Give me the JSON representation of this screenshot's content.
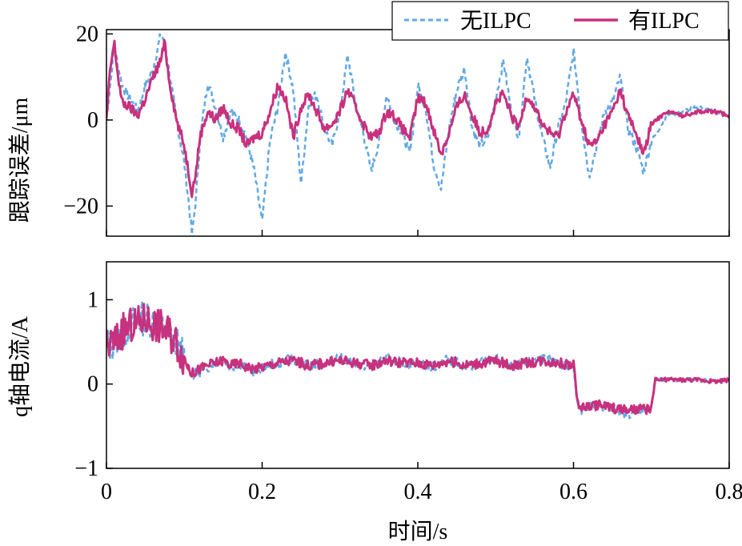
{
  "figure": {
    "xlabel": "时间/s"
  },
  "legend": {
    "entries": [
      {
        "label": "无ILPC",
        "color": "#62A8E5",
        "dash": "dashed"
      },
      {
        "label": "有ILPC",
        "color": "#C8317D",
        "dash": "solid"
      }
    ],
    "placement": "top-right"
  },
  "chart_data": [
    {
      "type": "line",
      "panel": "top",
      "ylabel": "跟踪误差/μm",
      "xlim": [
        0,
        0.8
      ],
      "ylim": [
        -27,
        21
      ],
      "yticks": [
        20,
        0,
        -20
      ],
      "ytick_labels": [
        "20",
        "0",
        "−20"
      ],
      "xticks": [
        0,
        0.2,
        0.4,
        0.6,
        0.8
      ],
      "xtick_labels_shown": false,
      "grid": false,
      "series": [
        {
          "name": "无ILPC",
          "color": "#62A8E5",
          "style": "dashed",
          "x": [
            0,
            0.01,
            0.02,
            0.03,
            0.04,
            0.05,
            0.06,
            0.07,
            0.075,
            0.08,
            0.09,
            0.1,
            0.105,
            0.11,
            0.115,
            0.12,
            0.13,
            0.14,
            0.15,
            0.16,
            0.17,
            0.18,
            0.19,
            0.2,
            0.21,
            0.22,
            0.23,
            0.24,
            0.25,
            0.26,
            0.27,
            0.28,
            0.29,
            0.3,
            0.31,
            0.32,
            0.33,
            0.34,
            0.35,
            0.36,
            0.37,
            0.38,
            0.39,
            0.4,
            0.41,
            0.42,
            0.43,
            0.44,
            0.45,
            0.46,
            0.47,
            0.48,
            0.49,
            0.5,
            0.51,
            0.52,
            0.53,
            0.54,
            0.55,
            0.56,
            0.57,
            0.58,
            0.59,
            0.6,
            0.61,
            0.62,
            0.63,
            0.64,
            0.65,
            0.66,
            0.67,
            0.68,
            0.69,
            0.7,
            0.72,
            0.74,
            0.76,
            0.78,
            0.8
          ],
          "y": [
            0,
            17,
            8,
            5,
            2,
            8,
            12,
            20,
            18,
            12,
            0,
            -10,
            -18,
            -27,
            -18,
            -5,
            9,
            3,
            -4,
            2,
            0,
            -4,
            -12,
            -24,
            -5,
            3,
            16,
            7,
            -15,
            4,
            6,
            -2,
            -6,
            2,
            15,
            4,
            -3,
            -12,
            -5,
            6,
            0,
            -3,
            -8,
            8,
            3,
            -10,
            -16,
            -2,
            7,
            12,
            -2,
            -6,
            -4,
            5,
            14,
            2,
            -4,
            15,
            5,
            -4,
            -11,
            -2,
            4,
            16,
            0,
            -13,
            -6,
            2,
            4,
            10,
            -2,
            -6,
            -12,
            -5,
            1,
            2,
            3,
            2,
            1
          ]
        },
        {
          "name": "有ILPC",
          "color": "#C8317D",
          "style": "solid",
          "x": [
            0,
            0.005,
            0.01,
            0.015,
            0.02,
            0.03,
            0.04,
            0.05,
            0.06,
            0.07,
            0.075,
            0.08,
            0.09,
            0.1,
            0.11,
            0.115,
            0.12,
            0.13,
            0.14,
            0.15,
            0.16,
            0.17,
            0.18,
            0.19,
            0.2,
            0.21,
            0.22,
            0.23,
            0.24,
            0.25,
            0.26,
            0.27,
            0.28,
            0.29,
            0.3,
            0.31,
            0.32,
            0.33,
            0.34,
            0.35,
            0.36,
            0.37,
            0.38,
            0.39,
            0.4,
            0.41,
            0.42,
            0.43,
            0.44,
            0.45,
            0.46,
            0.47,
            0.48,
            0.49,
            0.5,
            0.51,
            0.52,
            0.53,
            0.54,
            0.55,
            0.56,
            0.57,
            0.58,
            0.59,
            0.6,
            0.61,
            0.62,
            0.63,
            0.64,
            0.65,
            0.66,
            0.67,
            0.68,
            0.69,
            0.7,
            0.72,
            0.74,
            0.76,
            0.78,
            0.8
          ],
          "y": [
            0,
            12,
            18,
            10,
            4,
            3,
            1,
            5,
            10,
            14,
            18,
            10,
            0,
            -6,
            -17,
            -12,
            -4,
            2,
            0,
            3,
            -1,
            -2,
            -6,
            -4,
            -3,
            2,
            8,
            5,
            -4,
            3,
            6,
            2,
            -2,
            -1,
            2,
            7,
            3,
            -1,
            -4,
            -3,
            2,
            1,
            -2,
            -4,
            5,
            4,
            -2,
            -8,
            -3,
            3,
            6,
            1,
            -3,
            -2,
            4,
            6,
            1,
            -2,
            6,
            3,
            -1,
            -3,
            -4,
            2,
            6,
            0,
            -6,
            -5,
            -1,
            2,
            7,
            1,
            -3,
            -8,
            -1,
            2,
            1,
            2,
            2,
            1
          ]
        }
      ]
    },
    {
      "type": "line",
      "panel": "bottom",
      "ylabel": "q轴电流/A",
      "xlim": [
        0,
        0.8
      ],
      "ylim": [
        -1,
        1.45
      ],
      "yticks": [
        1,
        0,
        -1
      ],
      "ytick_labels": [
        "1",
        "0",
        "−1"
      ],
      "xticks": [
        0,
        0.2,
        0.4,
        0.6,
        0.8
      ],
      "xtick_labels": [
        "0",
        "0.2",
        "0.4",
        "0.6",
        "0.8"
      ],
      "grid": false,
      "series": [
        {
          "name": "无ILPC",
          "color": "#62A8E5",
          "style": "dashed",
          "x": [
            0,
            0.01,
            0.02,
            0.03,
            0.04,
            0.05,
            0.06,
            0.07,
            0.08,
            0.09,
            0.1,
            0.11,
            0.12,
            0.13,
            0.14,
            0.15,
            0.16,
            0.17,
            0.18,
            0.19,
            0.2,
            0.22,
            0.24,
            0.26,
            0.28,
            0.3,
            0.32,
            0.34,
            0.36,
            0.38,
            0.4,
            0.42,
            0.44,
            0.46,
            0.48,
            0.5,
            0.52,
            0.54,
            0.56,
            0.58,
            0.6,
            0.605,
            0.61,
            0.63,
            0.65,
            0.67,
            0.69,
            0.7,
            0.705,
            0.72,
            0.74,
            0.76,
            0.78,
            0.8
          ],
          "y": [
            0.45,
            0.5,
            0.6,
            0.7,
            0.75,
            0.8,
            0.75,
            0.7,
            0.6,
            0.5,
            0.3,
            0.1,
            0.15,
            0.2,
            0.25,
            0.3,
            0.2,
            0.25,
            0.2,
            0.15,
            0.2,
            0.25,
            0.3,
            0.2,
            0.25,
            0.3,
            0.25,
            0.2,
            0.3,
            0.25,
            0.25,
            0.2,
            0.3,
            0.2,
            0.25,
            0.3,
            0.2,
            0.25,
            0.3,
            0.25,
            0.2,
            -0.2,
            -0.3,
            -0.25,
            -0.3,
            -0.35,
            -0.3,
            -0.3,
            0.05,
            0.05,
            0.05,
            0.05,
            0.03,
            0.05
          ]
        },
        {
          "name": "有ILPC",
          "color": "#C8317D",
          "style": "solid",
          "x": [
            0,
            0.01,
            0.02,
            0.03,
            0.04,
            0.05,
            0.06,
            0.07,
            0.08,
            0.09,
            0.1,
            0.11,
            0.12,
            0.13,
            0.14,
            0.15,
            0.16,
            0.17,
            0.18,
            0.19,
            0.2,
            0.22,
            0.24,
            0.26,
            0.28,
            0.3,
            0.32,
            0.34,
            0.36,
            0.38,
            0.4,
            0.42,
            0.44,
            0.46,
            0.48,
            0.5,
            0.52,
            0.54,
            0.56,
            0.58,
            0.6,
            0.605,
            0.61,
            0.63,
            0.65,
            0.67,
            0.69,
            0.7,
            0.705,
            0.72,
            0.74,
            0.76,
            0.78,
            0.8
          ],
          "y": [
            0.45,
            0.5,
            0.62,
            0.68,
            0.72,
            0.78,
            0.72,
            0.68,
            0.62,
            0.5,
            0.3,
            0.12,
            0.18,
            0.22,
            0.25,
            0.28,
            0.22,
            0.25,
            0.2,
            0.18,
            0.2,
            0.25,
            0.28,
            0.22,
            0.25,
            0.28,
            0.25,
            0.22,
            0.28,
            0.25,
            0.25,
            0.22,
            0.28,
            0.22,
            0.25,
            0.28,
            0.22,
            0.25,
            0.28,
            0.25,
            0.22,
            -0.2,
            -0.28,
            -0.25,
            -0.28,
            -0.32,
            -0.3,
            -0.28,
            0.05,
            0.05,
            0.05,
            0.05,
            0.03,
            0.05
          ]
        }
      ]
    }
  ]
}
